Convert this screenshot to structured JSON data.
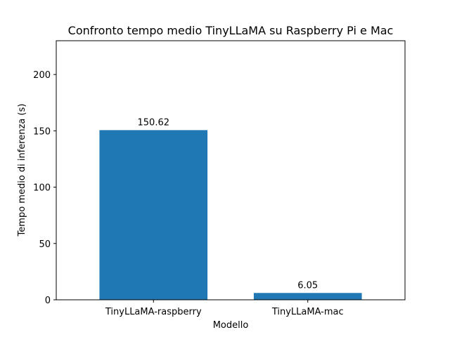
{
  "chart_data": {
    "type": "bar",
    "title": "Confronto tempo medio TinyLLaMA su Raspberry Pi e Mac",
    "xlabel": "Modello",
    "ylabel": "Tempo medio di inferenza (s)",
    "categories": [
      "TinyLLaMA-raspberry",
      "TinyLLaMA-mac"
    ],
    "values": [
      150.62,
      6.05
    ],
    "value_labels": [
      "150.62",
      "6.05"
    ],
    "ylim": [
      0,
      230
    ],
    "yticks": [
      0,
      50,
      100,
      150,
      200
    ],
    "ytick_labels": [
      "0",
      "50",
      "100",
      "150",
      "200"
    ],
    "bar_color": "#1f77b4",
    "grid": false,
    "legend": "none"
  }
}
